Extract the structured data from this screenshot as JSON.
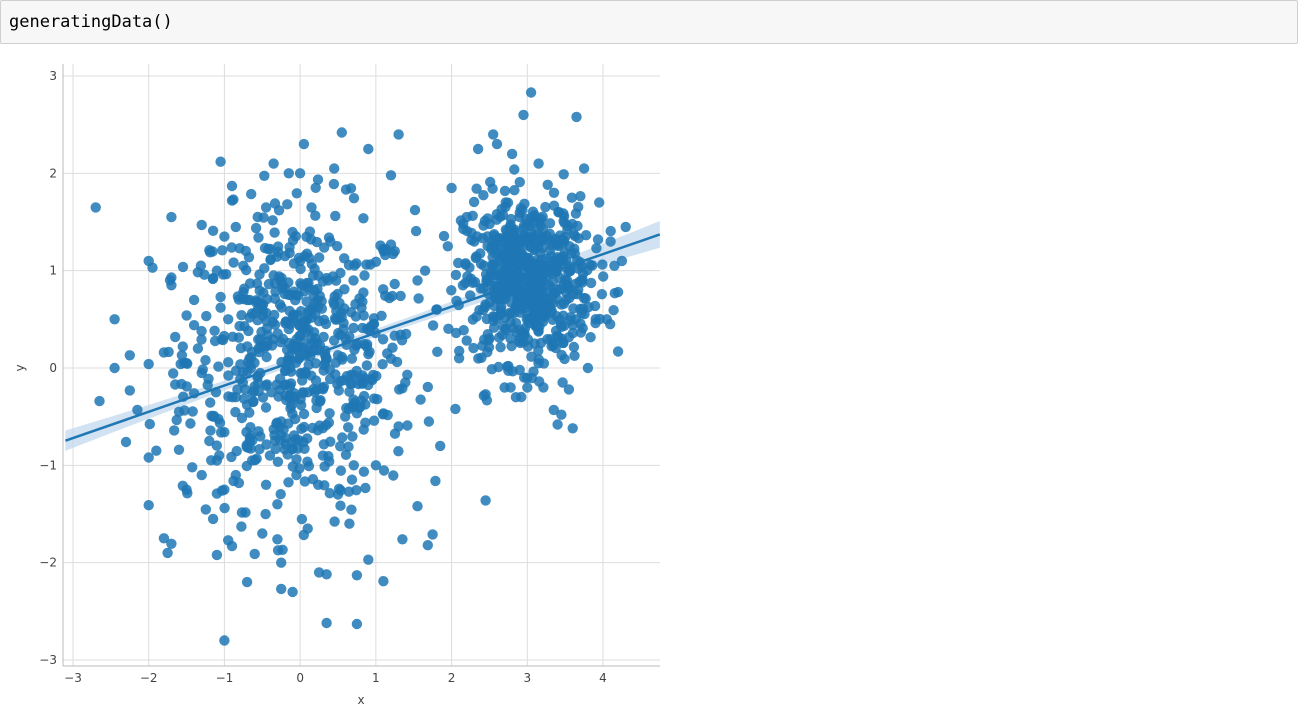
{
  "cell": {
    "code": "generatingData()"
  },
  "chart_data": {
    "type": "scatter",
    "xlabel": "x",
    "ylabel": "y",
    "xlim": [
      -3.1,
      4.75
    ],
    "ylim": [
      -3.05,
      3.1
    ],
    "x_ticks": [
      -3,
      -2,
      -1,
      0,
      1,
      2,
      3,
      4
    ],
    "x_tick_labels": [
      "−3",
      "−2",
      "−1",
      "0",
      "1",
      "2",
      "3",
      "4"
    ],
    "y_ticks": [
      -3,
      -2,
      -1,
      0,
      1,
      2,
      3
    ],
    "y_tick_labels": [
      "−3",
      "−2",
      "−1",
      "0",
      "1",
      "2",
      "3"
    ],
    "grid": true,
    "colors": {
      "points": "#1f77b4",
      "line": "#1f77b4",
      "band": "#c6dbef",
      "grid": "#dddddd",
      "spine": "#bbbbbb"
    },
    "regression": {
      "slope": 0.27,
      "intercept": 0.09,
      "x_range": [
        -3.1,
        4.75
      ],
      "ci_halfwidth_ends": 0.12,
      "ci_halfwidth_center": 0.04
    },
    "clusters_description_note": "",
    "points": [
      [
        -2.7,
        1.65
      ],
      [
        -2.65,
        -0.34
      ],
      [
        -2.45,
        0.5
      ],
      [
        -2.45,
        0.0
      ],
      [
        -2.3,
        -0.76
      ],
      [
        -2.25,
        0.13
      ],
      [
        -2.25,
        -0.23
      ],
      [
        -2.15,
        -0.43
      ],
      [
        -2.0,
        1.1
      ],
      [
        -2.0,
        0.04
      ],
      [
        -2.0,
        -0.92
      ],
      [
        -2.0,
        -1.41
      ],
      [
        -1.95,
        1.03
      ],
      [
        -1.9,
        -0.85
      ],
      [
        -1.8,
        0.16
      ],
      [
        -1.8,
        -1.75
      ],
      [
        -1.75,
        -1.9
      ],
      [
        -1.7,
        0.93
      ],
      [
        -1.7,
        0.85
      ],
      [
        -1.7,
        1.55
      ],
      [
        -1.65,
        0.32
      ],
      [
        -1.65,
        -0.17
      ],
      [
        -1.6,
        -0.45
      ],
      [
        -1.6,
        -0.84
      ],
      [
        -1.55,
        0.22
      ],
      [
        -1.55,
        -1.21
      ],
      [
        -1.5,
        -1.25
      ],
      [
        -1.5,
        0.54
      ],
      [
        -1.5,
        0.05
      ],
      [
        -1.45,
        -0.57
      ],
      [
        -1.4,
        0.7
      ],
      [
        -1.4,
        0.44
      ],
      [
        -1.4,
        -0.26
      ],
      [
        -1.35,
        0.2
      ],
      [
        -1.3,
        -0.05
      ],
      [
        -1.3,
        1.47
      ],
      [
        -1.3,
        -1.1
      ],
      [
        -1.25,
        0.08
      ],
      [
        -1.2,
        1.21
      ],
      [
        -1.2,
        -0.75
      ],
      [
        -1.15,
        -1.55
      ],
      [
        -1.15,
        1.41
      ],
      [
        -1.15,
        -0.5
      ],
      [
        -1.1,
        -1.29
      ],
      [
        -1.1,
        1.0
      ],
      [
        -1.1,
        -0.95
      ],
      [
        -1.1,
        -1.92
      ],
      [
        -1.05,
        2.12
      ],
      [
        -1.05,
        0.62
      ],
      [
        -1.0,
        -2.8
      ],
      [
        -1.0,
        1.35
      ],
      [
        -1.0,
        -1.25
      ],
      [
        -1.0,
        -0.66
      ],
      [
        -0.95,
        0.06
      ],
      [
        -0.95,
        -1.77
      ],
      [
        -0.9,
        1.87
      ],
      [
        -0.9,
        1.72
      ],
      [
        -0.9,
        -1.83
      ],
      [
        -0.85,
        1.45
      ],
      [
        -0.85,
        -1.1
      ],
      [
        -0.8,
        1.23
      ],
      [
        -0.8,
        0.43
      ],
      [
        -0.75,
        0.78
      ],
      [
        -0.7,
        -2.2
      ],
      [
        -0.7,
        -0.38
      ],
      [
        -0.65,
        0.0
      ],
      [
        -0.6,
        -1.91
      ],
      [
        -0.55,
        1.34
      ],
      [
        -0.5,
        -1.7
      ],
      [
        -0.45,
        1.65
      ],
      [
        -0.4,
        -0.9
      ],
      [
        -0.35,
        2.1
      ],
      [
        -0.3,
        -1.76
      ],
      [
        -0.25,
        -2.0
      ],
      [
        -0.25,
        -2.27
      ],
      [
        -0.2,
        1.15
      ],
      [
        -0.15,
        2.0
      ],
      [
        -0.1,
        -2.3
      ],
      [
        0.0,
        2.0
      ],
      [
        0.05,
        2.3
      ],
      [
        0.1,
        -1.65
      ],
      [
        0.25,
        -2.1
      ],
      [
        0.35,
        -2.62
      ],
      [
        0.35,
        -2.12
      ],
      [
        0.45,
        2.05
      ],
      [
        0.55,
        2.42
      ],
      [
        0.75,
        -2.63
      ],
      [
        0.75,
        -2.13
      ],
      [
        0.9,
        2.25
      ],
      [
        0.9,
        -1.97
      ],
      [
        1.1,
        -2.19
      ],
      [
        1.2,
        1.98
      ],
      [
        1.3,
        2.4
      ],
      [
        1.35,
        -1.76
      ],
      [
        1.55,
        -1.42
      ],
      [
        1.75,
        -1.71
      ],
      [
        1.65,
        1.0
      ],
      [
        1.8,
        0.6
      ],
      [
        1.7,
        -0.55
      ],
      [
        1.85,
        -0.8
      ],
      [
        1.55,
        0.9
      ],
      [
        1.4,
        0.35
      ],
      [
        1.3,
        -0.6
      ],
      [
        1.15,
        0.15
      ],
      [
        1.0,
        -1.0
      ],
      [
        0.85,
        0.95
      ],
      [
        0.7,
        -0.4
      ],
      [
        0.6,
        0.3
      ],
      [
        0.5,
        -1.3
      ],
      [
        0.4,
        1.3
      ],
      [
        0.3,
        -0.9
      ],
      [
        0.2,
        0.55
      ],
      [
        0.1,
        -0.25
      ],
      [
        0.0,
        1.1
      ],
      [
        -0.05,
        -1.1
      ],
      [
        -0.15,
        0.4
      ],
      [
        -0.25,
        -0.55
      ],
      [
        -0.35,
        0.95
      ],
      [
        -0.45,
        -1.2
      ],
      [
        -0.55,
        0.2
      ],
      [
        -0.65,
        -0.7
      ],
      [
        -0.75,
        1.05
      ],
      [
        -0.85,
        -0.3
      ],
      [
        -0.95,
        0.5
      ],
      [
        0.15,
        1.65
      ],
      [
        0.65,
        -1.6
      ],
      [
        1.25,
        1.2
      ],
      [
        -0.3,
        -1.4
      ],
      [
        2.1,
        0.1
      ],
      [
        2.15,
        0.85
      ],
      [
        2.05,
        -0.42
      ],
      [
        2.2,
        1.55
      ],
      [
        2.3,
        1.3
      ],
      [
        2.45,
        -1.36
      ],
      [
        2.45,
        -0.27
      ],
      [
        2.35,
        2.25
      ],
      [
        2.55,
        2.4
      ],
      [
        2.6,
        2.3
      ],
      [
        2.7,
        -0.2
      ],
      [
        2.75,
        0.02
      ],
      [
        2.8,
        2.2
      ],
      [
        2.85,
        -0.3
      ],
      [
        2.95,
        2.6
      ],
      [
        3.0,
        -0.2
      ],
      [
        3.05,
        2.83
      ],
      [
        3.15,
        2.1
      ],
      [
        3.35,
        -0.43
      ],
      [
        3.4,
        -0.58
      ],
      [
        3.45,
        -0.48
      ],
      [
        3.55,
        -0.22
      ],
      [
        3.6,
        -0.62
      ],
      [
        3.65,
        2.58
      ],
      [
        3.75,
        2.05
      ],
      [
        3.95,
        1.7
      ],
      [
        4.05,
        0.5
      ],
      [
        4.1,
        1.3
      ],
      [
        4.2,
        0.17
      ],
      [
        4.2,
        0.78
      ],
      [
        4.25,
        1.1
      ],
      [
        4.3,
        1.45
      ],
      [
        3.8,
        0.0
      ],
      [
        4.15,
        1.05
      ],
      [
        2.0,
        1.85
      ],
      [
        1.95,
        1.25
      ]
    ],
    "random_cluster_points_note": ""
  }
}
